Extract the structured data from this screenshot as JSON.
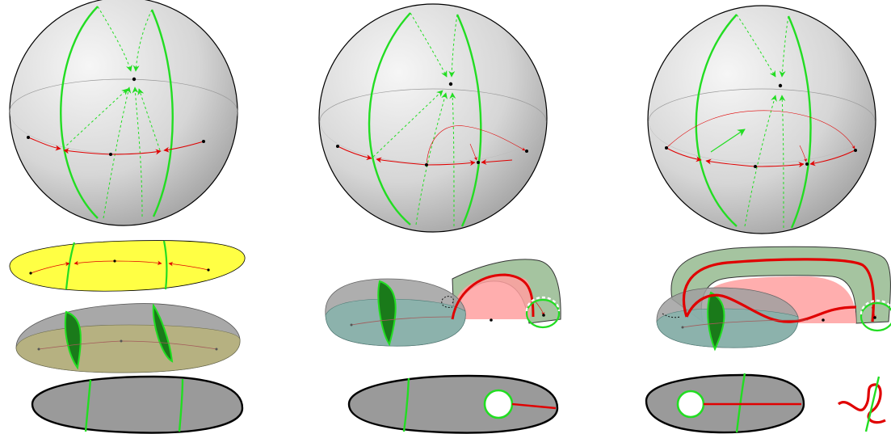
{
  "figure": {
    "panels": [
      {
        "id": "left",
        "variant": "base"
      },
      {
        "id": "middle",
        "variant": "single-fold"
      },
      {
        "id": "right",
        "variant": "double-fold"
      }
    ],
    "colors": {
      "sphere_fill_light": "#f4f4f4",
      "sphere_fill_dark": "#a8a8a8",
      "outline": "#000000",
      "green": "#22dd22",
      "dark_green": "#1a7a1a",
      "red": "#e00000",
      "yellow": "#ffff44",
      "grey_surface": "#a0a0a0",
      "teal_surface": "#86b3ac",
      "olive_surface": "#b8b37a",
      "pink": "#ffa0a0",
      "sage": "#a5c4a0",
      "disc_grey": "#9a9a9a"
    }
  }
}
